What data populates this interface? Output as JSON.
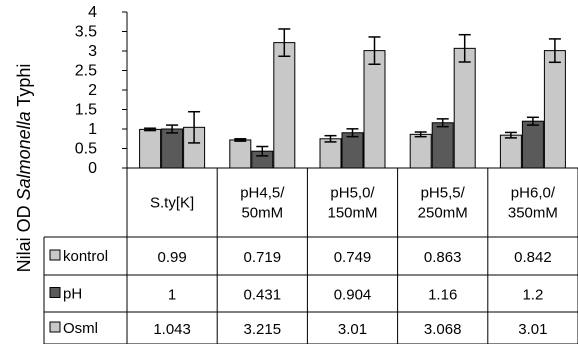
{
  "chart_data": {
    "type": "bar",
    "ylabel_parts": [
      "Nilai OD ",
      "Salmonella",
      " Typhi"
    ],
    "ylim": [
      0,
      4
    ],
    "yticks": [
      "0",
      "0.5",
      "1",
      "1.5",
      "2",
      "2.5",
      "3",
      "3.5",
      "4"
    ],
    "grid": false,
    "legend_placement": "data-table",
    "categories": [
      [
        "S.ty[K]"
      ],
      [
        "pH4,5/",
        "50mM"
      ],
      [
        "pH5,0/",
        "150mM"
      ],
      [
        "pH5,5/",
        "250mM"
      ],
      [
        "pH6,0/",
        "350mM"
      ]
    ],
    "series": [
      {
        "name": "kontrol",
        "color": "#c8c8c8",
        "values": [
          0.99,
          0.719,
          0.749,
          0.863,
          0.842
        ],
        "labels": [
          "0.99",
          "0.719",
          "0.749",
          "0.863",
          "0.842"
        ],
        "errors": [
          0.03,
          0.03,
          0.08,
          0.06,
          0.07
        ]
      },
      {
        "name": "pH",
        "color": "#5a5a5a",
        "values": [
          1,
          0.431,
          0.904,
          1.16,
          1.2
        ],
        "labels": [
          "1",
          "0.431",
          "0.904",
          "1.16",
          "1.2"
        ],
        "errors": [
          0.1,
          0.12,
          0.1,
          0.1,
          0.1
        ]
      },
      {
        "name": "Osml",
        "color": "#c8c8c8",
        "values": [
          1.043,
          3.215,
          3.01,
          3.068,
          3.01
        ],
        "labels": [
          "1.043",
          "3.215",
          "3.01",
          "3.068",
          "3.01"
        ],
        "errors": [
          0.4,
          0.35,
          0.35,
          0.35,
          0.3
        ]
      }
    ]
  }
}
